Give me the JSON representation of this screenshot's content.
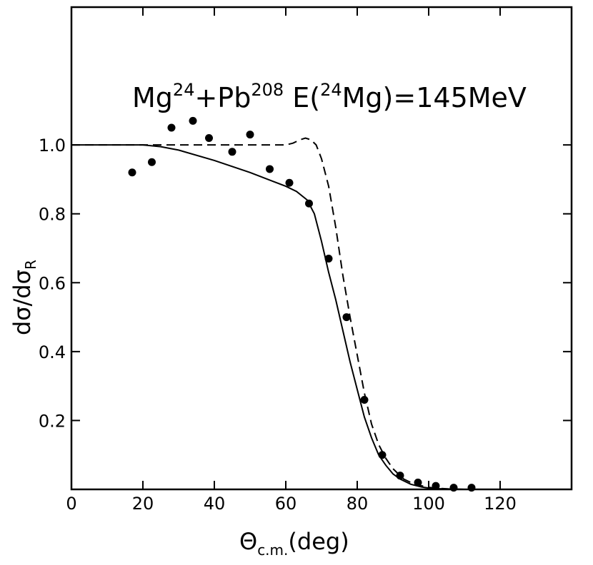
{
  "chart_data": {
    "type": "scatter",
    "title": {
      "p1": "Mg",
      "p1_sup": "24",
      "p2": "+Pb",
      "p2_sup": "208",
      "p3": " E(",
      "p3_sup": "24",
      "p4": "Mg)=145MeV"
    },
    "xlabel": {
      "symbol": "Θ",
      "sub": "c.m.",
      "rest": "(deg)"
    },
    "ylabel": {
      "a": "dσ/dσ",
      "sub": "R"
    },
    "xlim": [
      0,
      140
    ],
    "ylim": [
      0,
      1.4
    ],
    "xticks": [
      0,
      20,
      40,
      60,
      80,
      100,
      120
    ],
    "xtick_labels": [
      "0",
      "20",
      "40",
      "60",
      "80",
      "100",
      "120"
    ],
    "yticks": [
      0.2,
      0.4,
      0.6,
      0.8,
      1.0
    ],
    "ytick_labels": [
      "0.2",
      "0.4",
      "0.6",
      "0.8",
      "1.0"
    ],
    "grid": false,
    "series": [
      {
        "style": "markers",
        "x": [
          17,
          22.5,
          28,
          34,
          38.5,
          45,
          50,
          55.5,
          61,
          66.5,
          72,
          77,
          82,
          87,
          92,
          97,
          102,
          107,
          112
        ],
        "y": [
          0.92,
          0.95,
          1.05,
          1.07,
          1.02,
          0.98,
          1.03,
          0.93,
          0.89,
          0.83,
          0.67,
          0.5,
          0.26,
          0.1,
          0.04,
          0.02,
          0.01,
          0.005,
          0.005
        ]
      },
      {
        "style": "solid",
        "x": [
          0,
          20,
          25,
          30,
          40,
          50,
          60,
          63,
          66,
          68,
          70,
          72,
          74,
          76,
          78,
          80,
          82,
          84,
          86,
          88,
          90,
          92,
          95,
          98,
          100,
          103,
          106,
          110
        ],
        "y": [
          1.0,
          1.0,
          0.995,
          0.985,
          0.955,
          0.92,
          0.88,
          0.865,
          0.84,
          0.8,
          0.72,
          0.63,
          0.55,
          0.46,
          0.37,
          0.29,
          0.21,
          0.15,
          0.1,
          0.07,
          0.045,
          0.03,
          0.015,
          0.007,
          0.004,
          0.002,
          0.001,
          0.0
        ]
      },
      {
        "style": "dashed",
        "x": [
          0,
          20,
          40,
          55,
          60,
          62,
          64,
          65.5,
          67,
          68.5,
          70,
          72,
          74,
          76,
          78,
          80,
          82,
          84,
          86,
          88,
          90,
          93,
          96,
          100,
          103,
          106,
          110
        ],
        "y": [
          1.0,
          1.0,
          1.0,
          1.0,
          1.0,
          1.005,
          1.015,
          1.02,
          1.015,
          1.0,
          0.96,
          0.88,
          0.76,
          0.62,
          0.5,
          0.39,
          0.28,
          0.19,
          0.13,
          0.09,
          0.06,
          0.03,
          0.015,
          0.006,
          0.003,
          0.001,
          0.0
        ]
      }
    ]
  }
}
